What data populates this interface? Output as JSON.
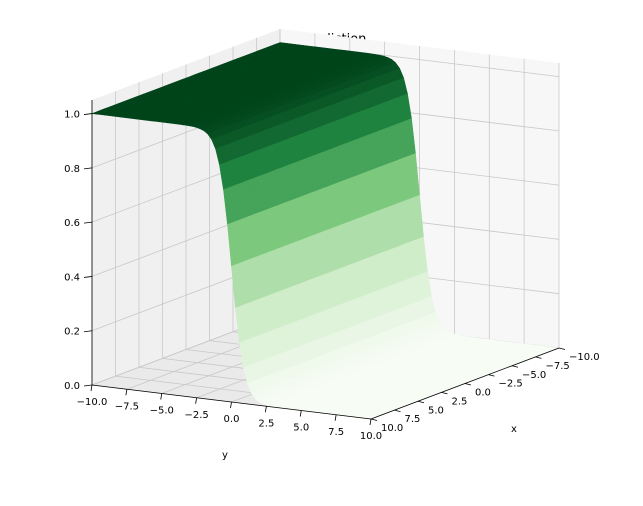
{
  "chart_data": {
    "type": "surface",
    "title": "NN prediction",
    "xlabel": "x",
    "ylabel": "y",
    "zlabel": "",
    "xlim": [
      -10,
      10
    ],
    "ylim": [
      -10,
      10
    ],
    "zlim": [
      0,
      1
    ],
    "x_ticks": [
      "−10.0",
      "−7.5",
      "−5.0",
      "−2.5",
      "0.0",
      "2.5",
      "5.0",
      "7.5",
      "10.0"
    ],
    "y_ticks": [
      "−10.0",
      "−7.5",
      "−5.0",
      "−2.5",
      "0.0",
      "2.5",
      "5.0",
      "7.5",
      "10.0"
    ],
    "z_ticks": [
      "0.0",
      "0.2",
      "0.4",
      "0.6",
      "0.8",
      "1.0"
    ],
    "x_tick_values": [
      -10,
      -7.5,
      -5,
      -2.5,
      0,
      2.5,
      5,
      7.5,
      10
    ],
    "y_tick_values": [
      -10,
      -7.5,
      -5,
      -2.5,
      0,
      2.5,
      5,
      7.5,
      10
    ],
    "z_tick_values": [
      0,
      0.2,
      0.4,
      0.6,
      0.8,
      1.0
    ],
    "surface": {
      "function": "sigmoid",
      "description_of_shape": "z rises from 0 to 1 as y decreases past about 0",
      "transition_y": 0,
      "steepness": 2.2,
      "colormap": "Greens",
      "low_color": "#f7fcf5",
      "high_color": "#00441b"
    },
    "grid": true,
    "pane_color": "#f2f2f2"
  }
}
